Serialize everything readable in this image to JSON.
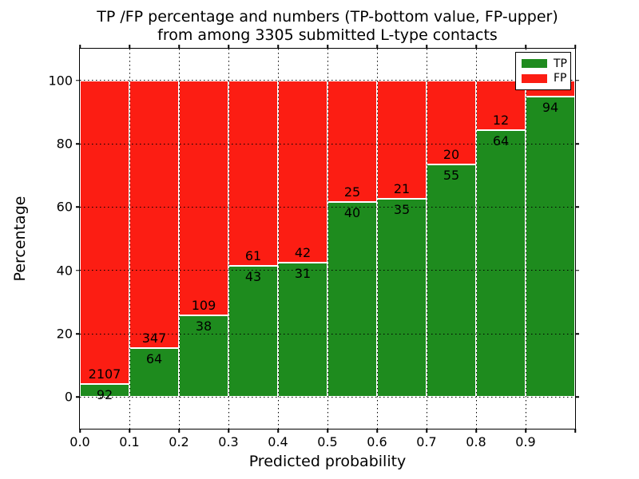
{
  "title": {
    "line1": "TP /FP percentage and numbers (TP-bottom value, FP-upper)",
    "line2": "from among 3305 submitted L-type contacts"
  },
  "axes": {
    "xlabel": "Predicted probability",
    "ylabel": "Percentage",
    "xlim": [
      0.0,
      1.0
    ],
    "ylim": [
      -10,
      110
    ],
    "x_ticks": [
      {
        "pos": 0.0,
        "label": "0.0"
      },
      {
        "pos": 0.1,
        "label": "0.1"
      },
      {
        "pos": 0.2,
        "label": "0.2"
      },
      {
        "pos": 0.3,
        "label": "0.3"
      },
      {
        "pos": 0.4,
        "label": "0.4"
      },
      {
        "pos": 0.5,
        "label": "0.5"
      },
      {
        "pos": 0.6,
        "label": "0.6"
      },
      {
        "pos": 0.7,
        "label": "0.7"
      },
      {
        "pos": 0.8,
        "label": "0.8"
      },
      {
        "pos": 0.9,
        "label": "0.9"
      },
      {
        "pos": 1.0,
        "label": ""
      }
    ],
    "y_ticks": [
      {
        "pos": 0,
        "label": "0"
      },
      {
        "pos": 20,
        "label": "20"
      },
      {
        "pos": 40,
        "label": "40"
      },
      {
        "pos": 60,
        "label": "60"
      },
      {
        "pos": 80,
        "label": "80"
      },
      {
        "pos": 100,
        "label": "100"
      }
    ],
    "grid": true,
    "grid_style": "dotted"
  },
  "legend": {
    "position": "upper right",
    "items": [
      {
        "label": "TP",
        "color": "#1e8b1e"
      },
      {
        "label": "FP",
        "color": "#fc1d13"
      }
    ]
  },
  "chart_data": {
    "type": "bar",
    "stacked": true,
    "orientation": "vertical",
    "bin_width": 0.1,
    "colors": {
      "TP": "#1e8b1e",
      "FP": "#fc1d13"
    },
    "note": "Each bar spans 0.1 of predicted probability; green TP on bottom up to tp_pct, red FP stacked above to 100%. Count labels printed at the TP/FP boundary: TP count below, FP count above.",
    "bins": [
      {
        "x0": 0.0,
        "x1": 0.1,
        "tp": 92,
        "fp": 2107,
        "tp_pct": 4.18,
        "tp_label": "92",
        "fp_label": "2107"
      },
      {
        "x0": 0.1,
        "x1": 0.2,
        "tp": 64,
        "fp": 347,
        "tp_pct": 15.57,
        "tp_label": "64",
        "fp_label": "347"
      },
      {
        "x0": 0.2,
        "x1": 0.3,
        "tp": 38,
        "fp": 109,
        "tp_pct": 25.85,
        "tp_label": "38",
        "fp_label": "109"
      },
      {
        "x0": 0.3,
        "x1": 0.4,
        "tp": 43,
        "fp": 61,
        "tp_pct": 41.35,
        "tp_label": "43",
        "fp_label": "61"
      },
      {
        "x0": 0.4,
        "x1": 0.5,
        "tp": 31,
        "fp": 42,
        "tp_pct": 42.47,
        "tp_label": "31",
        "fp_label": "42"
      },
      {
        "x0": 0.5,
        "x1": 0.6,
        "tp": 40,
        "fp": 25,
        "tp_pct": 61.54,
        "tp_label": "40",
        "fp_label": "25"
      },
      {
        "x0": 0.6,
        "x1": 0.7,
        "tp": 35,
        "fp": 21,
        "tp_pct": 62.5,
        "tp_label": "35",
        "fp_label": "21"
      },
      {
        "x0": 0.7,
        "x1": 0.8,
        "tp": 55,
        "fp": 20,
        "tp_pct": 73.33,
        "tp_label": "55",
        "fp_label": "20"
      },
      {
        "x0": 0.8,
        "x1": 0.9,
        "tp": 64,
        "fp": 12,
        "tp_pct": 84.21,
        "tp_label": "64",
        "fp_label": "12"
      },
      {
        "x0": 0.9,
        "x1": 1.0,
        "tp": 94,
        "fp": null,
        "tp_pct": 94.95,
        "tp_label": "94",
        "fp_label": ""
      }
    ],
    "series": [
      {
        "name": "TP",
        "values": [
          92,
          64,
          38,
          43,
          31,
          40,
          35,
          55,
          64,
          94
        ]
      },
      {
        "name": "FP",
        "values": [
          2107,
          347,
          109,
          61,
          42,
          25,
          21,
          20,
          12,
          null
        ]
      }
    ]
  }
}
